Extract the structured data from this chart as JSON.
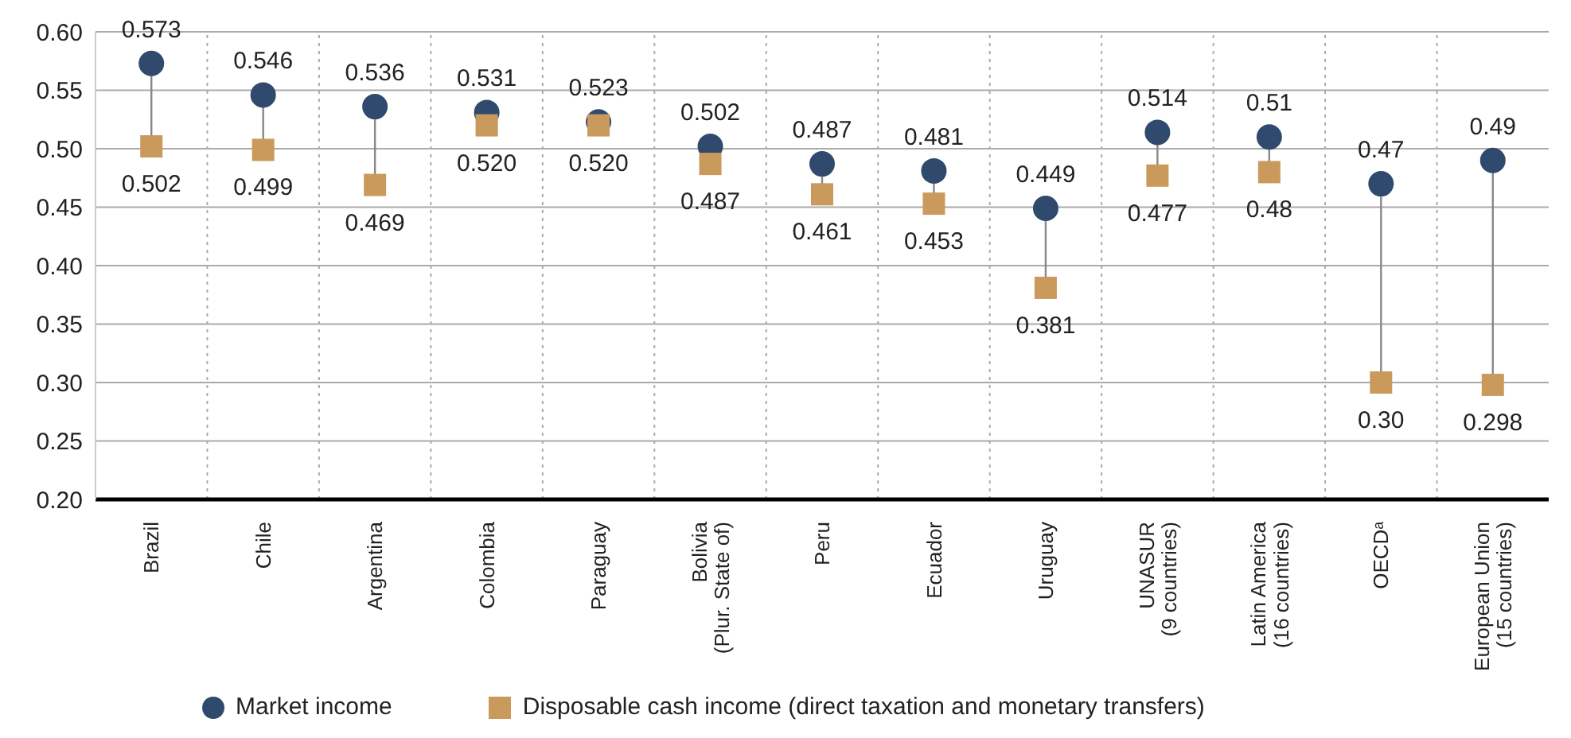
{
  "chart_data": {
    "type": "scatter",
    "categories": [
      "Brazil",
      "Chile",
      "Argentina",
      "Colombia",
      "Paraguay",
      "Bolivia (Plur. State of)",
      "Peru",
      "Ecuador",
      "Uruguay",
      "UNASUR (9 countries)",
      "Latin America (16 countries)",
      "OECDᵃ",
      "European Union (15 countries)"
    ],
    "series": [
      {
        "name": "Market income",
        "color": "#2f4a6d",
        "marker": "circle",
        "values": [
          0.573,
          0.546,
          0.536,
          0.531,
          0.523,
          0.502,
          0.487,
          0.481,
          0.449,
          0.514,
          0.51,
          0.47,
          0.49
        ],
        "value_labels": [
          "0.573",
          "0.546",
          "0.536",
          "0.531",
          "0.523",
          "0.502",
          "0.487",
          "0.481",
          "0.449",
          "0.514",
          "0.51",
          "0.47",
          "0.49"
        ]
      },
      {
        "name": "Disposable cash income (direct taxation and monetary transfers)",
        "color": "#c99a5b",
        "marker": "square",
        "values": [
          0.502,
          0.499,
          0.469,
          0.52,
          0.52,
          0.487,
          0.461,
          0.453,
          0.381,
          0.477,
          0.48,
          0.3,
          0.298
        ],
        "value_labels": [
          "0.502",
          "0.499",
          "0.469",
          "0.520",
          "0.520",
          "0.487",
          "0.461",
          "0.453",
          "0.381",
          "0.477",
          "0.48",
          "0.30",
          "0.298"
        ]
      }
    ],
    "ylim": [
      0.2,
      0.6
    ],
    "yticks": [
      {
        "value": 0.2,
        "label": "0.20"
      },
      {
        "value": 0.25,
        "label": "0.25"
      },
      {
        "value": 0.3,
        "label": "0.30"
      },
      {
        "value": 0.35,
        "label": "0.35"
      },
      {
        "value": 0.4,
        "label": "0.40"
      },
      {
        "value": 0.45,
        "label": "0.45"
      },
      {
        "value": 0.5,
        "label": "0.50"
      },
      {
        "value": 0.55,
        "label": "0.55"
      },
      {
        "value": 0.6,
        "label": "0.60"
      }
    ],
    "grid": true,
    "legend": "bottom"
  }
}
